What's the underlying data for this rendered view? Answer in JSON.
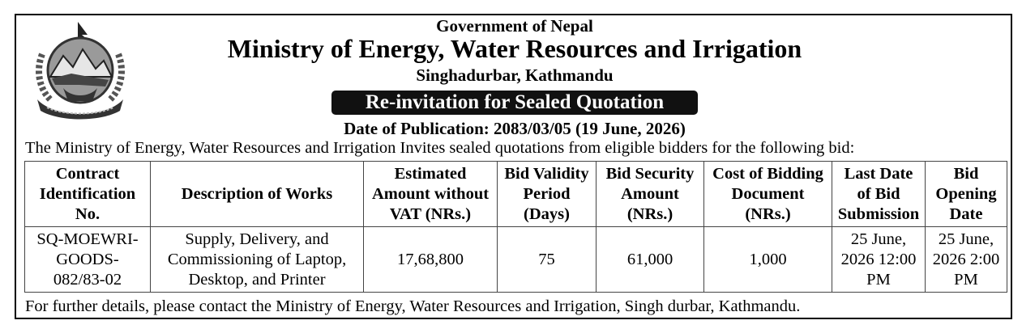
{
  "header": {
    "government": "Government of Nepal",
    "ministry": "Ministry of Energy, Water Resources and Irrigation",
    "location": "Singhadurbar, Kathmandu",
    "banner": "Re-invitation for Sealed Quotation",
    "publication_date": "Date of Publication: 2083/03/05 (19 June, 2026)"
  },
  "intro": "The Ministry of Energy, Water Resources and Irrigation Invites sealed quotations from eligible bidders for the following bid:",
  "table": {
    "headers": [
      [
        "Contract",
        "Identification",
        "No."
      ],
      [
        "Description of Works"
      ],
      [
        "Estimated",
        "Amount without",
        "VAT (NRs.)"
      ],
      [
        "Bid Validity",
        "Period",
        "(Days)"
      ],
      [
        "Bid Security",
        "Amount",
        "(NRs.)"
      ],
      [
        "Cost of Bidding",
        "Document",
        "(NRs.)"
      ],
      [
        "Last Date",
        "of Bid",
        "Submission"
      ],
      [
        "Bid",
        "Opening",
        "Date"
      ]
    ],
    "rows": [
      [
        [
          "SQ-MOEWRI-",
          "GOODS-",
          "082/83-02"
        ],
        [
          "Supply, Delivery, and",
          "Commissioning of Laptop,",
          "Desktop, and Printer"
        ],
        [
          "17,68,800"
        ],
        [
          "75"
        ],
        [
          "61,000"
        ],
        [
          "1,000"
        ],
        [
          "25 June,",
          "2026 12:00",
          "PM"
        ],
        [
          "25 June,",
          "2026 2:00",
          "PM"
        ]
      ]
    ]
  },
  "footer": "For further details, please contact the Ministry of Energy, Water Resources and Irrigation, Singh durbar, Kathmandu.",
  "emblem": {
    "icon": "nepal-coat-of-arms-icon"
  }
}
